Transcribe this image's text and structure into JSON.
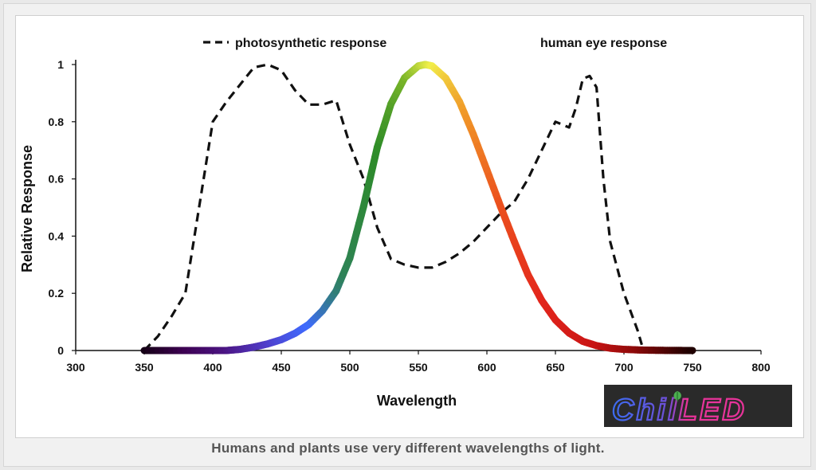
{
  "caption": "Humans and plants use very different wavelengths of light.",
  "logo": {
    "part1": "Chil",
    "part2": "LED",
    "leaf_icon": "leaf-icon",
    "color1": "#3b6cf0",
    "color2": "#e8339a"
  },
  "chart_data": {
    "type": "line",
    "xlabel": "Wavelength",
    "ylabel": "Relative Response",
    "xlim": [
      300,
      800
    ],
    "ylim": [
      0,
      1
    ],
    "x_ticks": [
      300,
      350,
      400,
      450,
      500,
      550,
      600,
      650,
      700,
      750,
      800
    ],
    "y_ticks": [
      0,
      0.2,
      0.4,
      0.6,
      0.8,
      1
    ],
    "y_tick_labels": [
      "0",
      "0.2",
      "0.4",
      "0.6",
      "0.8",
      "1"
    ],
    "grid": false,
    "legend_position": "top",
    "series": [
      {
        "name": "photosynthetic response",
        "style": "dashed",
        "color": "#111111",
        "x": [
          350,
          360,
          370,
          380,
          390,
          400,
          410,
          420,
          430,
          440,
          450,
          460,
          470,
          480,
          490,
          500,
          510,
          520,
          530,
          540,
          550,
          560,
          570,
          580,
          590,
          600,
          610,
          620,
          630,
          640,
          650,
          655,
          660,
          665,
          670,
          675,
          680,
          685,
          690,
          700,
          710,
          713
        ],
        "y": [
          0,
          0.05,
          0.12,
          0.2,
          0.5,
          0.8,
          0.87,
          0.93,
          0.99,
          1.0,
          0.98,
          0.91,
          0.86,
          0.86,
          0.875,
          0.72,
          0.6,
          0.43,
          0.32,
          0.3,
          0.29,
          0.29,
          0.31,
          0.34,
          0.38,
          0.43,
          0.48,
          0.52,
          0.6,
          0.7,
          0.8,
          0.79,
          0.78,
          0.85,
          0.95,
          0.96,
          0.92,
          0.6,
          0.38,
          0.2,
          0.07,
          0.02
        ]
      },
      {
        "name": "human eye response",
        "style": "spectral",
        "x": [
          350,
          370,
          390,
          410,
          420,
          430,
          440,
          450,
          460,
          470,
          480,
          490,
          500,
          510,
          520,
          530,
          540,
          550,
          555,
          560,
          570,
          580,
          590,
          600,
          610,
          620,
          630,
          640,
          650,
          660,
          670,
          680,
          690,
          700,
          710,
          720,
          730,
          740,
          750
        ],
        "y": [
          0,
          0,
          0,
          0,
          0.004,
          0.012,
          0.023,
          0.038,
          0.06,
          0.091,
          0.139,
          0.208,
          0.323,
          0.503,
          0.71,
          0.862,
          0.954,
          0.995,
          1.0,
          0.995,
          0.952,
          0.87,
          0.757,
          0.631,
          0.503,
          0.381,
          0.265,
          0.175,
          0.107,
          0.061,
          0.032,
          0.017,
          0.008,
          0.004,
          0.002,
          0.001,
          0.0005,
          0.0002,
          0.0001
        ]
      }
    ]
  }
}
